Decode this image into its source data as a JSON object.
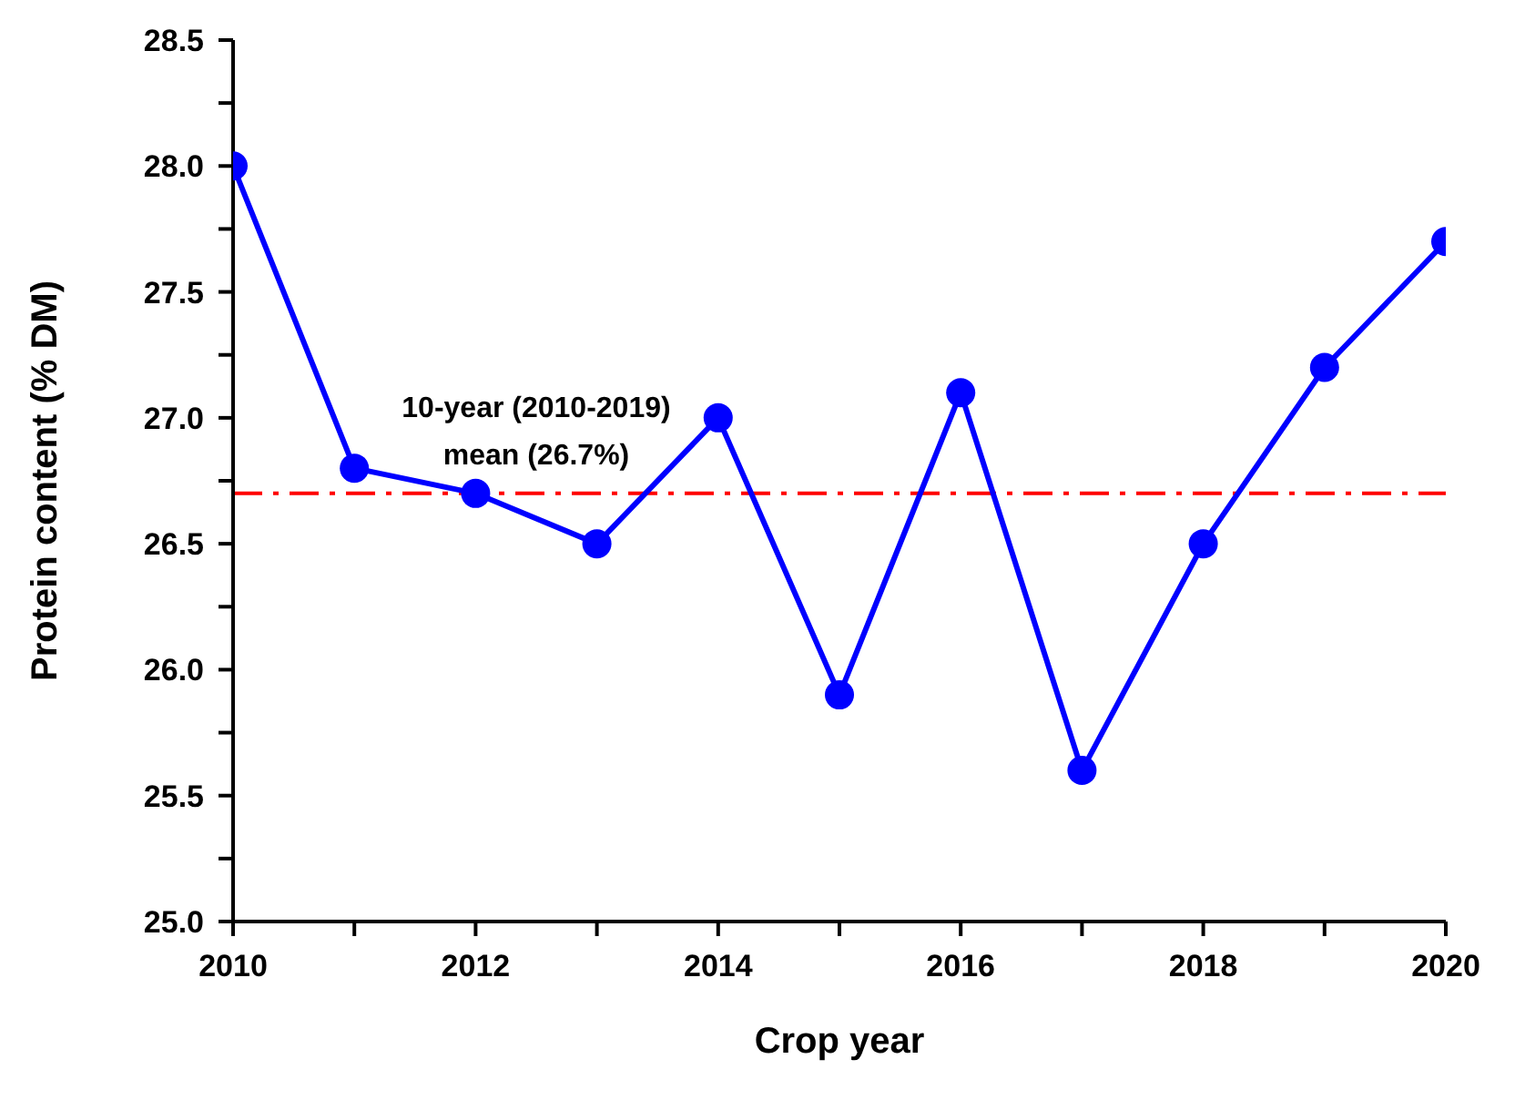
{
  "chart_data": {
    "type": "line",
    "xlabel": "Crop year",
    "ylabel": "Protein content (% DM)",
    "x": [
      2010,
      2011,
      2012,
      2013,
      2014,
      2015,
      2016,
      2017,
      2018,
      2019,
      2020
    ],
    "series": [
      {
        "color": "#0000ff",
        "values": [
          28.0,
          26.8,
          26.7,
          26.5,
          27.0,
          25.9,
          27.1,
          25.6,
          26.5,
          27.2,
          27.7
        ]
      }
    ],
    "xlim": [
      2010,
      2020
    ],
    "xticks": [
      2010,
      {
        "value": 2011,
        "label": null
      },
      2012,
      {
        "value": 2013,
        "label": null
      },
      2014,
      {
        "value": 2015,
        "label": null
      },
      2016,
      {
        "value": 2017,
        "label": null
      },
      2018,
      {
        "value": 2019,
        "label": null
      },
      2020
    ],
    "ylim": [
      25,
      28.5
    ],
    "yticks": [
      {
        "value": 25,
        "label": "25.0"
      },
      {
        "value": 25.25,
        "label": null
      },
      {
        "value": 25.5,
        "label": "25.5"
      },
      {
        "value": 25.75,
        "label": null
      },
      {
        "value": 26,
        "label": "26.0"
      },
      {
        "value": 26.25,
        "label": null
      },
      {
        "value": 26.5,
        "label": "26.5"
      },
      {
        "value": 26.75,
        "label": null
      },
      {
        "value": 27,
        "label": "27.0"
      },
      {
        "value": 27.25,
        "label": null
      },
      {
        "value": 27.5,
        "label": "27.5"
      },
      {
        "value": 27.75,
        "label": null
      },
      {
        "value": 28,
        "label": "28.0"
      },
      {
        "value": 28.25,
        "label": null
      },
      {
        "value": 28.5,
        "label": "28.5"
      }
    ],
    "ref_lines": [
      {
        "axis": "y",
        "value": 26.7,
        "label": "10-year (2010-2019) mean (26.7%)",
        "color": "#ff0000",
        "line_style": "dashed"
      }
    ],
    "grid": false,
    "legend": false,
    "marker": "circle",
    "line_style": "solid"
  }
}
